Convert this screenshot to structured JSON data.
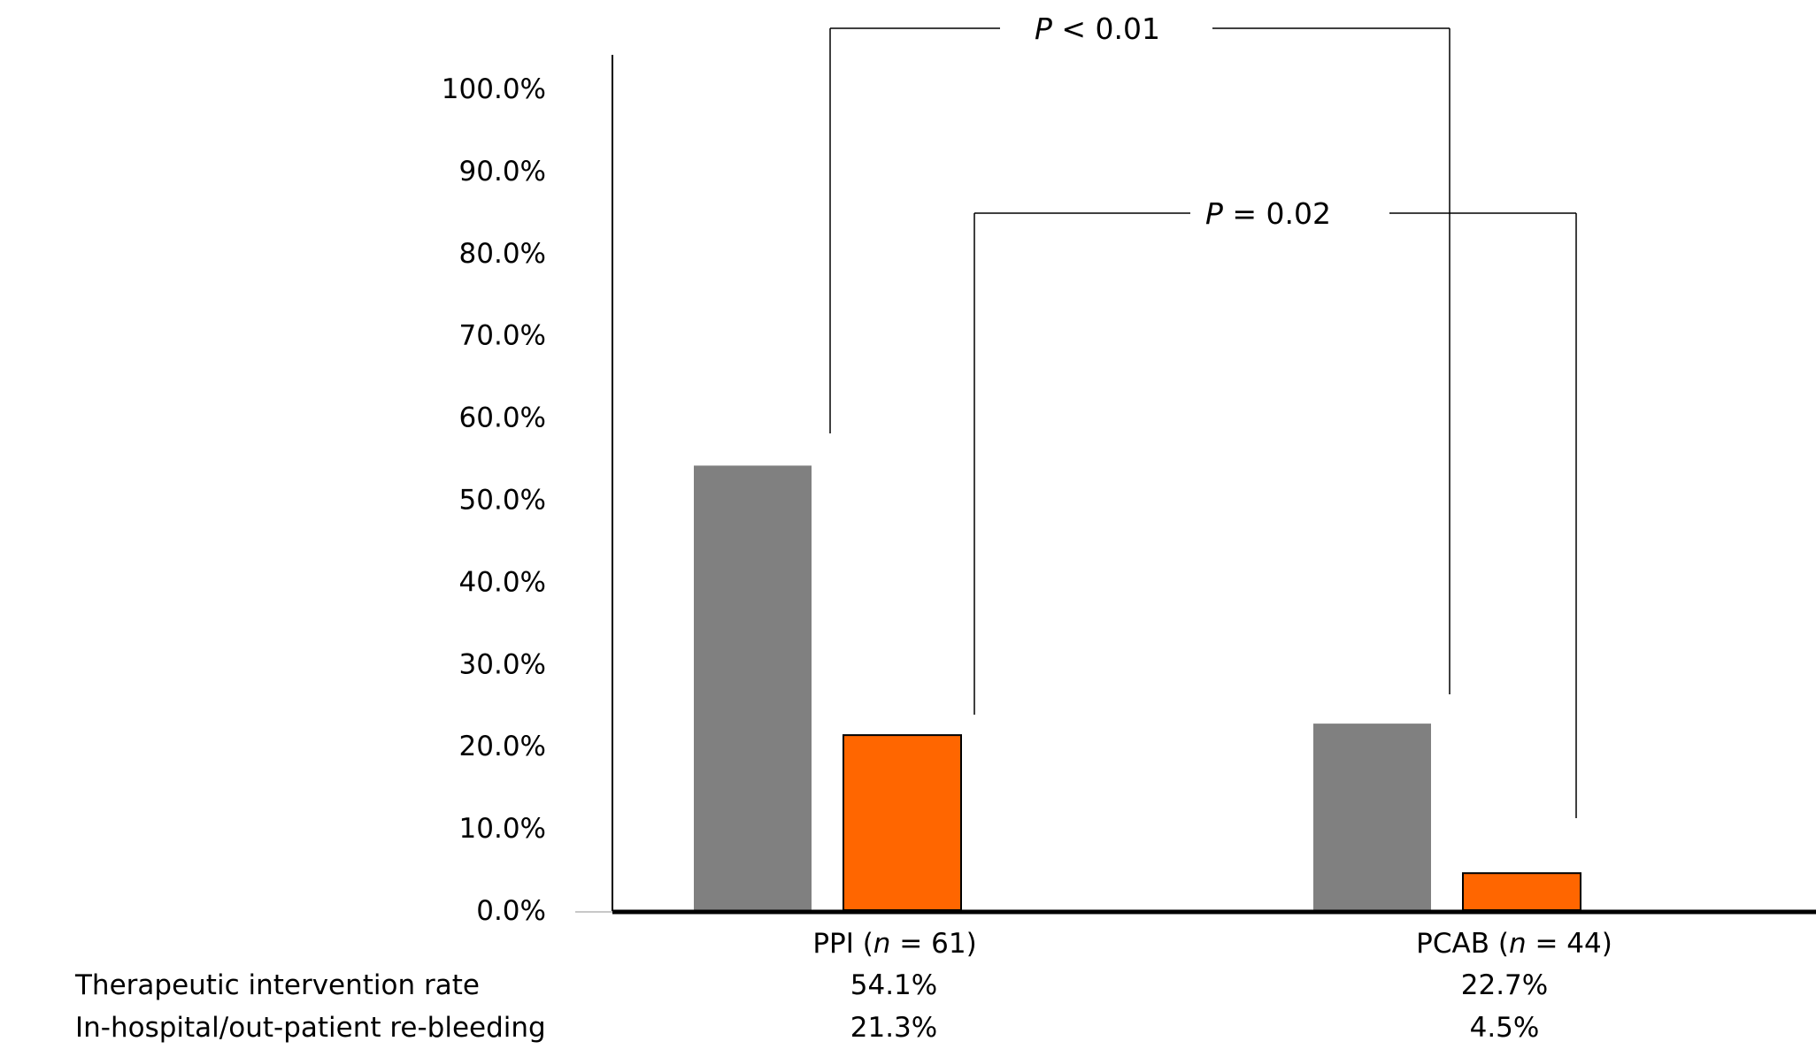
{
  "chart_data": {
    "type": "bar",
    "title": "",
    "xlabel": "",
    "ylabel": "",
    "ylim": [
      0,
      100
    ],
    "yticks": [
      0,
      10,
      20,
      30,
      40,
      50,
      60,
      70,
      80,
      90,
      100
    ],
    "ytick_labels": [
      "0.0%",
      "10.0%",
      "20.0%",
      "30.0%",
      "40.0%",
      "50.0%",
      "60.0%",
      "70.0%",
      "80.0%",
      "90.0%",
      "100.0%"
    ],
    "legend": "none",
    "grid": false,
    "categories": [
      {
        "name": "PPI",
        "n_label": "n",
        "n_value": "= 61"
      },
      {
        "name": "PCAB",
        "n_label": "n",
        "n_value": "= 44"
      }
    ],
    "series": [
      {
        "values": [
          54.1,
          22.7
        ],
        "color": "#808080"
      },
      {
        "values": [
          21.3,
          4.5
        ],
        "color": "#ff6600"
      }
    ],
    "table": {
      "rows": [
        {
          "label": "Therapeutic intervention rate",
          "cells": [
            "54.1%",
            "22.7%"
          ]
        },
        {
          "label": "In-hospital/out-patient re-bleeding",
          "cells": [
            "21.3%",
            "4.5%"
          ]
        }
      ]
    },
    "annotations": [
      {
        "from": {
          "category": 0,
          "series": 0
        },
        "to": {
          "category": 1,
          "series": 0
        },
        "p_symbol": "P",
        "p_text": "< 0.01",
        "level": 100.0
      },
      {
        "from": {
          "category": 0,
          "series": 1
        },
        "to": {
          "category": 1,
          "series": 1
        },
        "p_symbol": "P",
        "p_text": "= 0.02",
        "level": 85.0
      }
    ]
  }
}
